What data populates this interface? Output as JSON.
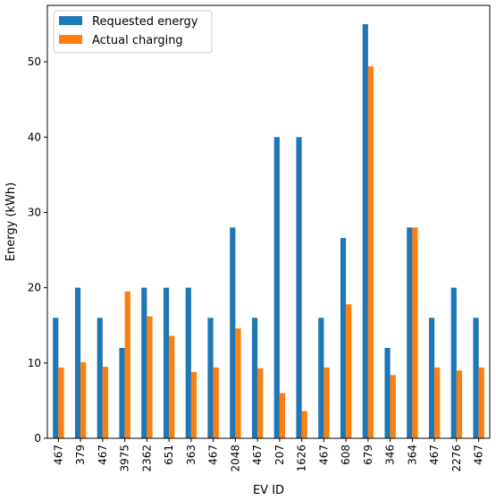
{
  "chart_data": {
    "type": "bar",
    "title": "",
    "xlabel": "EV ID",
    "ylabel": "Energy (kWh)",
    "categories": [
      "467",
      "379",
      "467",
      "3975",
      "2362",
      "651",
      "363",
      "467",
      "2048",
      "467",
      "207",
      "1626",
      "467",
      "608",
      "679",
      "346",
      "364",
      "467",
      "2276",
      "467"
    ],
    "series": [
      {
        "name": "Requested energy",
        "color": "#1f77b4",
        "values": [
          16,
          20,
          16,
          12,
          20,
          20,
          20,
          16,
          28,
          16,
          40,
          40,
          16,
          26.6,
          55,
          12,
          28,
          16,
          20,
          16
        ]
      },
      {
        "name": "Actual charging",
        "color": "#ff7f0e",
        "values": [
          9.4,
          10.1,
          9.5,
          19.5,
          16.2,
          13.6,
          8.8,
          9.4,
          14.6,
          9.3,
          6.0,
          3.6,
          9.4,
          17.8,
          49.4,
          8.4,
          28,
          9.4,
          9.0,
          9.4
        ]
      }
    ],
    "ylim": [
      0,
      57.5
    ],
    "yticks": [
      0,
      10,
      20,
      30,
      40,
      50
    ],
    "grid": false,
    "legend_position": "top-left"
  }
}
